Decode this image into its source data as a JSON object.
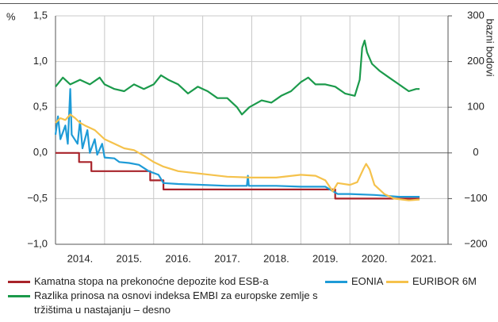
{
  "chart_data": {
    "type": "line",
    "ylabel": "%",
    "y2label": "bazni bodovi",
    "xlim": [
      2014,
      2022
    ],
    "xticks": [
      {
        "value": 2014.5,
        "label": "2014."
      },
      {
        "value": 2015.5,
        "label": "2015."
      },
      {
        "value": 2016.5,
        "label": "2016."
      },
      {
        "value": 2017.5,
        "label": "2017."
      },
      {
        "value": 2018.5,
        "label": "2018."
      },
      {
        "value": 2019.5,
        "label": "2019."
      },
      {
        "value": 2020.5,
        "label": "2020."
      },
      {
        "value": 2021.5,
        "label": "2021."
      }
    ],
    "x_grid": [
      2015,
      2016,
      2017,
      2018,
      2019,
      2020,
      2021
    ],
    "ylim": [
      -1,
      1.5
    ],
    "yticks": [
      {
        "value": -1,
        "label": "−1,0"
      },
      {
        "value": -0.5,
        "label": "−0,5"
      },
      {
        "value": 0,
        "label": "0,0"
      },
      {
        "value": 0.5,
        "label": "0,5"
      },
      {
        "value": 1,
        "label": "1,0"
      },
      {
        "value": 1.5,
        "label": "1,5"
      }
    ],
    "y2lim": [
      -200,
      300
    ],
    "y2ticks": [
      {
        "value": -200,
        "label": "−200"
      },
      {
        "value": -100,
        "label": "−100"
      },
      0,
      100,
      200,
      300
    ],
    "grid": true,
    "series": [
      {
        "name": "Kamatna stopa na prekonoćne depozite kod ESB-a",
        "color": "#a8232a",
        "x": [
          2014,
          2014.48,
          2014.48,
          2014.73,
          2014.73,
          2015.93,
          2015.93,
          2016.2,
          2016.2,
          2019.7,
          2019.7,
          2021.42
        ],
        "values": [
          0,
          0,
          -0.1,
          -0.1,
          -0.2,
          -0.2,
          -0.3,
          -0.3,
          -0.4,
          -0.4,
          -0.5,
          -0.5
        ]
      },
      {
        "name": "EONIA",
        "color": "#1e9bd7",
        "x": [
          2014,
          2014.05,
          2014.1,
          2014.2,
          2014.25,
          2014.3,
          2014.33,
          2014.45,
          2014.5,
          2014.55,
          2014.65,
          2014.7,
          2014.8,
          2014.85,
          2014.95,
          2015,
          2015.2,
          2015.3,
          2015.5,
          2015.7,
          2015.9,
          2016.1,
          2016.2,
          2016.5,
          2017,
          2017.5,
          2017.9,
          2017.92,
          2017.94,
          2018.5,
          2019,
          2019.5,
          2019.75,
          2020,
          2020.5,
          2021,
          2021.42
        ],
        "values": [
          0.2,
          0.4,
          0.15,
          0.3,
          0.1,
          0.7,
          0.2,
          0.1,
          0.35,
          0.05,
          0.25,
          0,
          0.15,
          -0.02,
          0.1,
          -0.05,
          -0.06,
          -0.1,
          -0.11,
          -0.13,
          -0.2,
          -0.24,
          -0.33,
          -0.34,
          -0.35,
          -0.36,
          -0.36,
          -0.25,
          -0.36,
          -0.36,
          -0.37,
          -0.37,
          -0.45,
          -0.45,
          -0.46,
          -0.48,
          -0.48
        ]
      },
      {
        "name": "EURIBOR 6M",
        "color": "#f5c24c",
        "x": [
          2014,
          2014.1,
          2014.2,
          2014.3,
          2014.4,
          2014.5,
          2014.6,
          2014.8,
          2015,
          2015.2,
          2015.4,
          2015.6,
          2015.8,
          2016,
          2016.2,
          2016.5,
          2017,
          2017.5,
          2018,
          2018.5,
          2019,
          2019.3,
          2019.5,
          2019.65,
          2019.75,
          2020,
          2020.15,
          2020.28,
          2020.33,
          2020.4,
          2020.5,
          2020.7,
          2020.9,
          2021.2,
          2021.42
        ],
        "values": [
          0.33,
          0.38,
          0.36,
          0.42,
          0.38,
          0.33,
          0.3,
          0.25,
          0.15,
          0.1,
          0.05,
          0.03,
          -0.03,
          -0.1,
          -0.15,
          -0.2,
          -0.23,
          -0.26,
          -0.27,
          -0.27,
          -0.24,
          -0.25,
          -0.3,
          -0.42,
          -0.33,
          -0.35,
          -0.32,
          -0.17,
          -0.12,
          -0.18,
          -0.35,
          -0.45,
          -0.5,
          -0.52,
          -0.51
        ]
      },
      {
        "name": "Razlika prinosa na osnovi indeksa EMBI za europske zemlje s tržištima u nastajanju – desno",
        "color": "#1b9a4b",
        "axis": "y2",
        "x": [
          2014,
          2014.15,
          2014.3,
          2014.5,
          2014.7,
          2014.9,
          2015,
          2015.2,
          2015.4,
          2015.6,
          2015.8,
          2016,
          2016.15,
          2016.3,
          2016.5,
          2016.7,
          2016.9,
          2017.1,
          2017.3,
          2017.5,
          2017.7,
          2017.8,
          2017.95,
          2018.2,
          2018.4,
          2018.6,
          2018.8,
          2019,
          2019.15,
          2019.3,
          2019.5,
          2019.7,
          2019.9,
          2020.1,
          2020.2,
          2020.25,
          2020.3,
          2020.35,
          2020.45,
          2020.6,
          2020.8,
          2021,
          2021.2,
          2021.35,
          2021.42
        ],
        "values": [
          145,
          165,
          150,
          160,
          150,
          165,
          150,
          140,
          135,
          150,
          140,
          150,
          170,
          160,
          150,
          130,
          145,
          135,
          120,
          120,
          100,
          84,
          100,
          115,
          110,
          125,
          135,
          155,
          165,
          150,
          150,
          145,
          130,
          125,
          160,
          230,
          246,
          220,
          195,
          180,
          165,
          150,
          135,
          140,
          140
        ]
      }
    ]
  }
}
